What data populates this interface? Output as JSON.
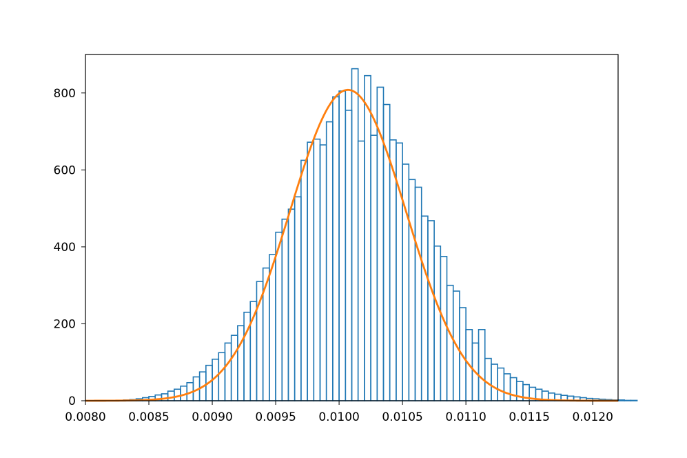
{
  "chart_data": {
    "type": "histogram",
    "title": "",
    "xlabel": "",
    "ylabel": "",
    "xlim": [
      0.008,
      0.0122
    ],
    "ylim": [
      0,
      900
    ],
    "x_ticks": [
      "0.0080",
      "0.0085",
      "0.0090",
      "0.0095",
      "0.0100",
      "0.0105",
      "0.0110",
      "0.0115",
      "0.0120"
    ],
    "x_tick_values": [
      0.008,
      0.0085,
      0.009,
      0.0095,
      0.01,
      0.0105,
      0.011,
      0.0115,
      0.012
    ],
    "y_ticks": [
      "0",
      "200",
      "400",
      "600",
      "800"
    ],
    "y_tick_values": [
      0,
      200,
      400,
      600,
      800
    ],
    "grid": false,
    "legend": "none",
    "histogram": {
      "style": "step-outline",
      "color": "#1f77b4",
      "bin_edges_start": 0.00825,
      "bin_width": 5e-05,
      "counts": [
        1,
        2,
        3,
        5,
        8,
        11,
        15,
        18,
        25,
        30,
        38,
        47,
        62,
        75,
        92,
        108,
        125,
        150,
        170,
        195,
        230,
        258,
        310,
        345,
        380,
        438,
        472,
        498,
        530,
        625,
        672,
        680,
        665,
        725,
        790,
        805,
        755,
        863,
        675,
        845,
        690,
        815,
        770,
        678,
        670,
        615,
        575,
        555,
        480,
        468,
        402,
        375,
        300,
        285,
        242,
        185,
        150,
        185,
        110,
        95,
        85,
        70,
        60,
        50,
        42,
        35,
        30,
        25,
        20,
        17,
        14,
        12,
        10,
        8,
        6,
        5,
        4,
        3,
        2,
        2,
        1,
        1
      ]
    },
    "fit_curve": {
      "type": "normal-pdf",
      "color": "#ff7f0e",
      "mean": 0.01007,
      "std": 0.00046,
      "peak": 808
    }
  }
}
